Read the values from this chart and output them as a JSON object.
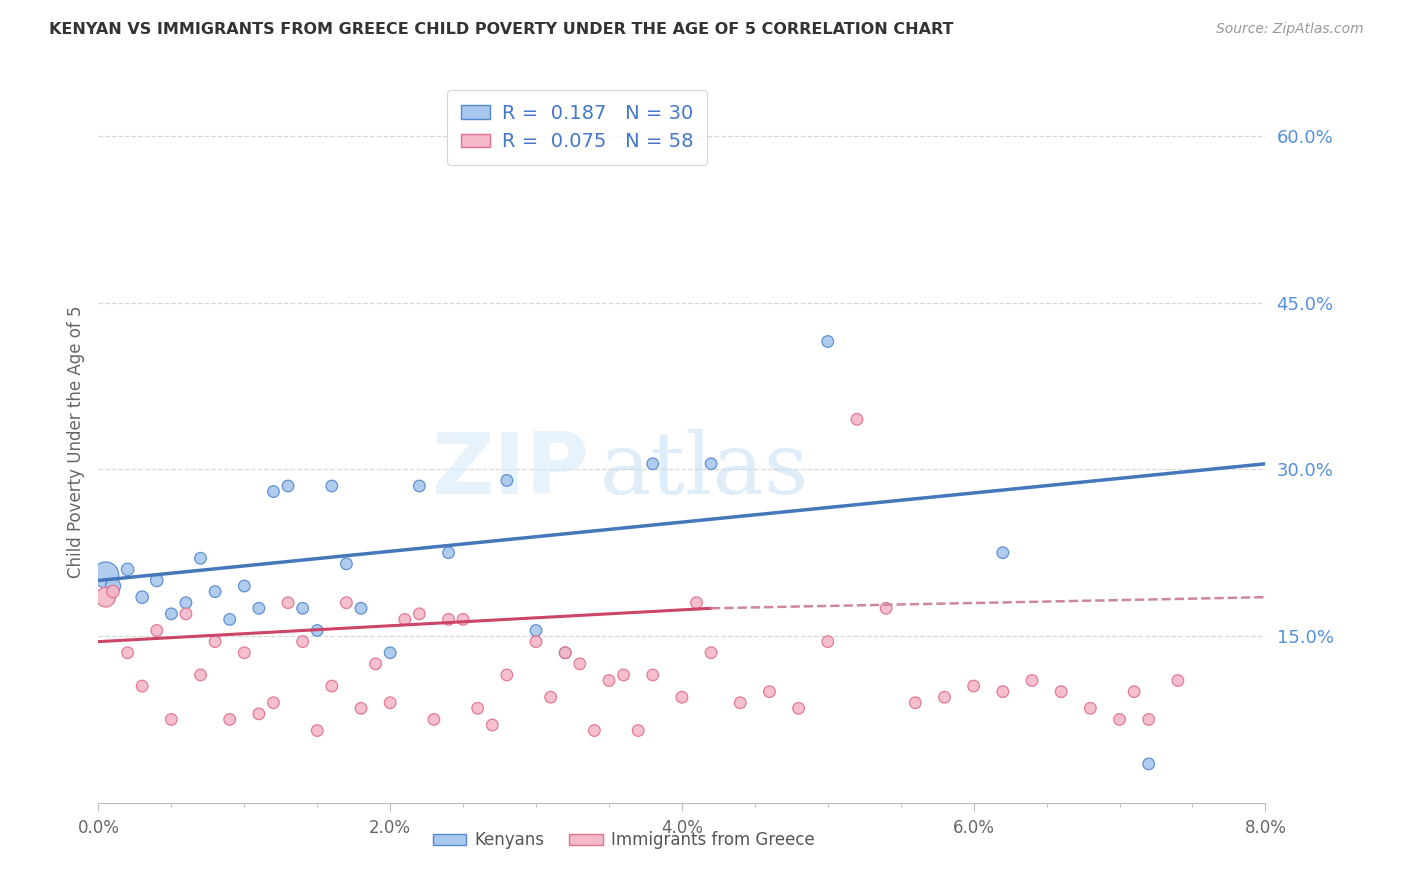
{
  "title": "KENYAN VS IMMIGRANTS FROM GREECE CHILD POVERTY UNDER THE AGE OF 5 CORRELATION CHART",
  "source": "Source: ZipAtlas.com",
  "ylabel": "Child Poverty Under the Age of 5",
  "xlim": [
    0.0,
    0.08
  ],
  "ylim": [
    0.0,
    0.65
  ],
  "xticks": [
    0.0,
    0.02,
    0.04,
    0.06,
    0.08
  ],
  "yticks_right": [
    0.15,
    0.3,
    0.45,
    0.6
  ],
  "ytick_labels_right": [
    "15.0%",
    "30.0%",
    "45.0%",
    "60.0%"
  ],
  "xtick_labels": [
    "0.0%",
    "2.0%",
    "4.0%",
    "6.0%",
    "8.0%"
  ],
  "watermark_zip": "ZIP",
  "watermark_atlas": "atlas",
  "legend_labels": [
    "Kenyans",
    "Immigrants from Greece"
  ],
  "kenyan_R": "0.187",
  "kenyan_N": "30",
  "greece_R": "0.075",
  "greece_N": "58",
  "blue_fill": "#a8c8ee",
  "blue_edge": "#5588cc",
  "pink_fill": "#f5b8c8",
  "pink_edge": "#e07090",
  "blue_line_color": "#4477bb",
  "pink_line_color": "#cc4466",
  "pink_dashed_color": "#cc8899",
  "kenyan_x": [
    0.0005,
    0.001,
    0.002,
    0.003,
    0.004,
    0.005,
    0.006,
    0.007,
    0.008,
    0.009,
    0.01,
    0.011,
    0.012,
    0.013,
    0.014,
    0.015,
    0.016,
    0.017,
    0.018,
    0.02,
    0.022,
    0.024,
    0.028,
    0.03,
    0.032,
    0.038,
    0.042,
    0.05,
    0.062,
    0.072
  ],
  "kenyan_y": [
    0.205,
    0.195,
    0.21,
    0.185,
    0.2,
    0.17,
    0.18,
    0.22,
    0.19,
    0.165,
    0.195,
    0.175,
    0.28,
    0.285,
    0.175,
    0.155,
    0.285,
    0.215,
    0.175,
    0.135,
    0.285,
    0.225,
    0.29,
    0.155,
    0.135,
    0.305,
    0.305,
    0.415,
    0.225,
    0.035
  ],
  "kenyan_size": [
    350,
    120,
    80,
    80,
    80,
    70,
    70,
    70,
    70,
    70,
    70,
    70,
    70,
    70,
    70,
    70,
    70,
    70,
    70,
    70,
    70,
    70,
    70,
    70,
    70,
    70,
    70,
    70,
    70,
    70
  ],
  "greece_x": [
    0.0005,
    0.001,
    0.002,
    0.003,
    0.004,
    0.005,
    0.006,
    0.007,
    0.008,
    0.009,
    0.01,
    0.011,
    0.012,
    0.013,
    0.014,
    0.015,
    0.016,
    0.017,
    0.018,
    0.019,
    0.02,
    0.021,
    0.022,
    0.023,
    0.024,
    0.025,
    0.026,
    0.027,
    0.028,
    0.03,
    0.031,
    0.032,
    0.033,
    0.034,
    0.035,
    0.036,
    0.037,
    0.038,
    0.04,
    0.041,
    0.042,
    0.044,
    0.046,
    0.048,
    0.05,
    0.052,
    0.054,
    0.056,
    0.058,
    0.06,
    0.062,
    0.064,
    0.066,
    0.068,
    0.07,
    0.071,
    0.072,
    0.074
  ],
  "greece_y": [
    0.185,
    0.19,
    0.135,
    0.105,
    0.155,
    0.075,
    0.17,
    0.115,
    0.145,
    0.075,
    0.135,
    0.08,
    0.09,
    0.18,
    0.145,
    0.065,
    0.105,
    0.18,
    0.085,
    0.125,
    0.09,
    0.165,
    0.17,
    0.075,
    0.165,
    0.165,
    0.085,
    0.07,
    0.115,
    0.145,
    0.095,
    0.135,
    0.125,
    0.065,
    0.11,
    0.115,
    0.065,
    0.115,
    0.095,
    0.18,
    0.135,
    0.09,
    0.1,
    0.085,
    0.145,
    0.345,
    0.175,
    0.09,
    0.095,
    0.105,
    0.1,
    0.11,
    0.1,
    0.085,
    0.075,
    0.1,
    0.075,
    0.11
  ],
  "greece_size": [
    200,
    80,
    70,
    70,
    70,
    70,
    70,
    70,
    70,
    70,
    70,
    70,
    70,
    70,
    70,
    70,
    70,
    70,
    70,
    70,
    70,
    70,
    70,
    70,
    70,
    70,
    70,
    70,
    70,
    70,
    70,
    70,
    70,
    70,
    70,
    70,
    70,
    70,
    70,
    70,
    70,
    70,
    70,
    70,
    70,
    70,
    70,
    70,
    70,
    70,
    70,
    70,
    70,
    70,
    70,
    70,
    70,
    70
  ],
  "kenyan_trend": [
    0.0,
    0.08,
    0.2,
    0.305
  ],
  "greece_solid_trend": [
    0.0,
    0.042,
    0.145,
    0.175
  ],
  "greece_dashed_trend": [
    0.042,
    0.08,
    0.175,
    0.185
  ]
}
